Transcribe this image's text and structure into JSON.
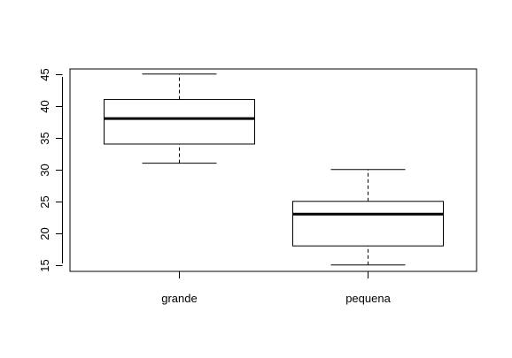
{
  "chart_data": {
    "type": "boxplot",
    "categories": [
      "grande",
      "pequena"
    ],
    "boxes": [
      {
        "category": "grande",
        "whisker_low": 31,
        "q1": 34,
        "median": 38,
        "q3": 41,
        "whisker_high": 45
      },
      {
        "category": "pequena",
        "whisker_low": 15,
        "q1": 18,
        "median": 23,
        "q3": 25,
        "whisker_high": 30
      }
    ],
    "yticks": [
      15,
      20,
      25,
      30,
      35,
      40,
      45
    ],
    "ylim": [
      14,
      45.8
    ],
    "title": "",
    "xlabel": "",
    "ylabel": "",
    "grid": false,
    "colors": {
      "stroke": "#000000",
      "box_fill": "#ffffff",
      "background": "#ffffff"
    }
  }
}
